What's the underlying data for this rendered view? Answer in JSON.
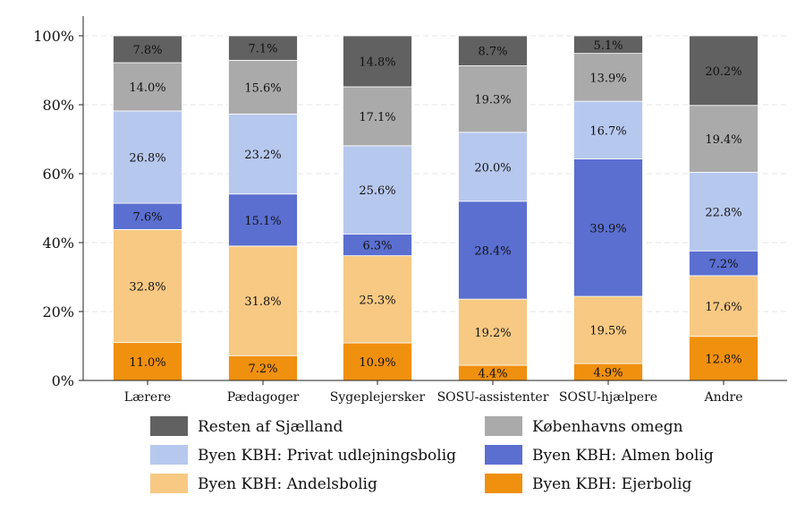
{
  "chart_data": {
    "type": "bar",
    "stacked": true,
    "title": "",
    "xlabel": "",
    "ylabel": "",
    "ylim": [
      0,
      100
    ],
    "y_ticks": [
      "0%",
      "20%",
      "40%",
      "60%",
      "80%",
      "100%"
    ],
    "y_tick_values": [
      0,
      20,
      40,
      60,
      80,
      100
    ],
    "grid": true,
    "legend_position": "bottom",
    "categories": [
      "Lærere",
      "Pædagoger",
      "Sygeplejersker",
      "SOSU-assistenter",
      "SOSU-hjælpere",
      "Andre"
    ],
    "series": [
      {
        "name": "Byen KBH: Ejerbolig",
        "color": "#f0900f",
        "label_color": "#111111",
        "values": [
          11.0,
          7.2,
          10.9,
          4.4,
          4.9,
          12.8
        ],
        "labels": [
          "11.0%",
          "7.2%",
          "10.9%",
          "4.4%",
          "4.9%",
          "12.8%"
        ]
      },
      {
        "name": "Byen KBH: Andelsbolig",
        "color": "#f7c983",
        "label_color": "#111111",
        "values": [
          32.8,
          31.8,
          25.3,
          19.2,
          19.5,
          17.6
        ],
        "labels": [
          "32.8%",
          "31.8%",
          "25.3%",
          "19.2%",
          "19.5%",
          "17.6%"
        ]
      },
      {
        "name": "Byen KBH: Almen bolig",
        "color": "#5b6fd0",
        "label_color": "#111111",
        "values": [
          7.6,
          15.1,
          6.3,
          28.4,
          39.9,
          7.2
        ],
        "labels": [
          "7.6%",
          "15.1%",
          "6.3%",
          "28.4%",
          "39.9%",
          "7.2%"
        ]
      },
      {
        "name": "Byen KBH: Privat udlejningsbolig",
        "color": "#b7c8ee",
        "label_color": "#111111",
        "values": [
          26.8,
          23.2,
          25.6,
          20.0,
          16.7,
          22.8
        ],
        "labels": [
          "26.8%",
          "23.2%",
          "25.6%",
          "20.0%",
          "16.7%",
          "22.8%"
        ]
      },
      {
        "name": "Københavns omegn",
        "color": "#aaaaaa",
        "label_color": "#111111",
        "values": [
          14.0,
          15.6,
          17.1,
          19.3,
          13.9,
          19.4
        ],
        "labels": [
          "14.0%",
          "15.6%",
          "17.1%",
          "19.3%",
          "13.9%",
          "19.4%"
        ]
      },
      {
        "name": "Resten af Sjælland",
        "color": "#616161",
        "label_color": "#111111",
        "values": [
          7.8,
          7.1,
          14.8,
          8.7,
          5.1,
          20.2
        ],
        "labels": [
          "7.8%",
          "7.1%",
          "14.8%",
          "8.7%",
          "5.1%",
          "20.2%"
        ]
      }
    ],
    "legend_order": [
      "Resten af Sjælland",
      "Københavns omegn",
      "Byen KBH: Privat udlejningsbolig",
      "Byen KBH: Almen bolig",
      "Byen KBH: Andelsbolig",
      "Byen KBH: Ejerbolig"
    ]
  }
}
